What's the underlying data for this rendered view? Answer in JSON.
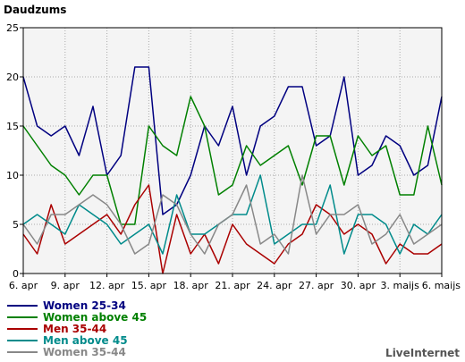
{
  "chart_data": {
    "type": "line",
    "title": "Daudzums",
    "xlabel": "",
    "ylabel": "",
    "ylim": [
      0,
      25
    ],
    "yticks": [
      0,
      5,
      10,
      15,
      20,
      25
    ],
    "grid": true,
    "legend_position": "bottom-left",
    "x": [
      "6. apr",
      "7. apr",
      "8. apr",
      "9. apr",
      "10. apr",
      "11. apr",
      "12. apr",
      "13. apr",
      "14. apr",
      "15. apr",
      "16. apr",
      "17. apr",
      "18. apr",
      "19. apr",
      "20. apr",
      "21. apr",
      "22. apr",
      "23. apr",
      "24. apr",
      "25. apr",
      "26. apr",
      "27. apr",
      "28. apr",
      "29. apr",
      "30. apr",
      "1. maijs",
      "2. maijs",
      "3. maijs",
      "4. maijs",
      "5. maijs",
      "6. maijs"
    ],
    "xtick_labels": [
      "6. apr",
      "9. apr",
      "12. apr",
      "15. apr",
      "18. apr",
      "21. apr",
      "24. apr",
      "27. apr",
      "30. apr",
      "3. maijs",
      "6. maijs"
    ],
    "xtick_every": 3,
    "series": [
      {
        "name": "Women 25-34",
        "color": "#000080",
        "values": [
          20,
          15,
          14,
          15,
          12,
          17,
          10,
          12,
          21,
          21,
          6,
          7,
          10,
          15,
          13,
          17,
          10,
          15,
          16,
          19,
          19,
          13,
          14,
          20,
          10,
          11,
          14,
          13,
          10,
          11,
          18
        ]
      },
      {
        "name": "Women above 45",
        "color": "#008000",
        "values": [
          15,
          13,
          11,
          10,
          8,
          10,
          10,
          5,
          5,
          15,
          13,
          12,
          18,
          15,
          8,
          9,
          13,
          11,
          12,
          13,
          9,
          14,
          14,
          9,
          14,
          12,
          13,
          8,
          8,
          15,
          9
        ]
      },
      {
        "name": "Men 35-44",
        "color": "#aa0000",
        "values": [
          4,
          2,
          7,
          3,
          4,
          5,
          6,
          4,
          7,
          9,
          0,
          6,
          2,
          4,
          1,
          5,
          3,
          2,
          1,
          3,
          4,
          7,
          6,
          4,
          5,
          4,
          1,
          3,
          2,
          2,
          3
        ]
      },
      {
        "name": "Men above 45",
        "color": "#008b8b",
        "values": [
          5,
          6,
          5,
          4,
          7,
          6,
          5,
          3,
          4,
          5,
          2,
          8,
          4,
          4,
          5,
          6,
          6,
          10,
          3,
          4,
          5,
          5,
          9,
          2,
          6,
          6,
          5,
          2,
          5,
          4,
          6
        ]
      },
      {
        "name": "Women 35-44",
        "color": "#888888",
        "values": [
          5,
          3,
          6,
          6,
          7,
          8,
          7,
          5,
          2,
          3,
          8,
          7,
          4,
          2,
          5,
          6,
          9,
          3,
          4,
          2,
          10,
          4,
          6,
          6,
          7,
          3,
          4,
          6,
          3,
          4,
          5
        ]
      }
    ]
  },
  "branding": {
    "text": "LiveInternet"
  }
}
